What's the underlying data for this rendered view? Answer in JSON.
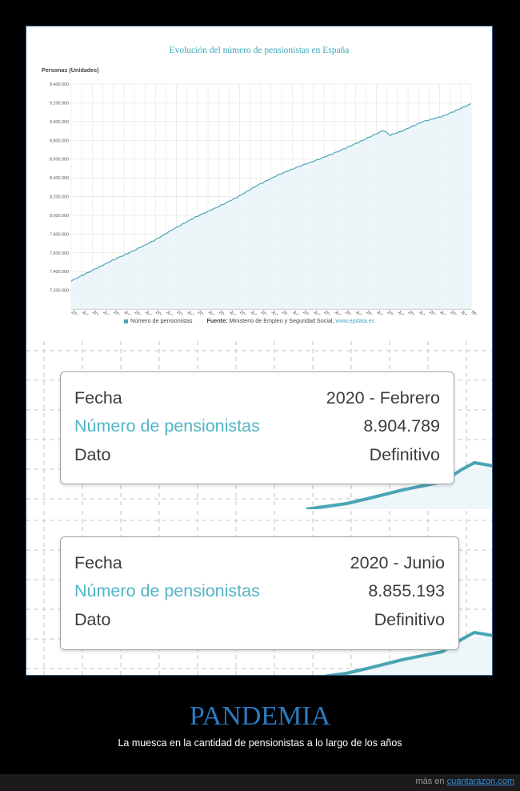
{
  "chart_data": {
    "type": "area",
    "title": "Evolución del número de pensionistas en España",
    "ylabel": "Personas (Unidades)",
    "ylim": [
      7000000,
      9400000
    ],
    "yticks": [
      "9.400.000",
      "9.200.000",
      "9.000.000",
      "8.800.000",
      "8.600.000",
      "8.400.000",
      "8.200.000",
      "8.000.000",
      "7.800.000",
      "7.600.000",
      "7.400.000",
      "7.200.000"
    ],
    "xticks": [
      "2005",
      "Julio",
      "2006",
      "Julio",
      "2007",
      "Julio",
      "2008",
      "Julio",
      "2009",
      "Julio",
      "2010",
      "Julio",
      "2011",
      "Julio",
      "2012",
      "Julio",
      "2013",
      "Julio",
      "2014",
      "Julio",
      "2015",
      "Julio",
      "2016",
      "Julio",
      "2017",
      "Julio",
      "2018",
      "Julio",
      "2019",
      "Julio",
      "2020",
      "Julio",
      "2021",
      "Julio",
      "2022",
      "Julio",
      "2023",
      "Julio",
      "Mayo"
    ],
    "series": [
      {
        "name": "Número de pensionistas",
        "color": "#4aa5b5",
        "x": [
          "2005-01",
          "2006-01",
          "2007-01",
          "2008-01",
          "2009-01",
          "2010-01",
          "2011-01",
          "2012-01",
          "2013-01",
          "2014-01",
          "2015-01",
          "2016-01",
          "2017-01",
          "2018-01",
          "2019-01",
          "2020-02",
          "2020-06",
          "2021-01",
          "2022-01",
          "2023-01",
          "2024-05"
        ],
        "values": [
          7300000,
          7410000,
          7520000,
          7620000,
          7730000,
          7860000,
          7980000,
          8080000,
          8190000,
          8320000,
          8430000,
          8520000,
          8600000,
          8690000,
          8790000,
          8904789,
          8855193,
          8900000,
          9000000,
          9060000,
          9190000
        ]
      }
    ]
  },
  "legend": {
    "series_label": "Número de pensionistas",
    "source_label": "Fuente:",
    "source_text": "Ministerio de Empleo y Seguridad Social,",
    "source_url": "www.epdata.es"
  },
  "tooltips": [
    {
      "fecha_label": "Fecha",
      "fecha_value": "2020 - Febrero",
      "metric_label": "Número de pensionistas",
      "metric_value": "8.904.789",
      "dato_label": "Dato",
      "dato_value": "Definitivo"
    },
    {
      "fecha_label": "Fecha",
      "fecha_value": "2020 - Junio",
      "metric_label": "Número de pensionistas",
      "metric_value": "8.855.193",
      "dato_label": "Dato",
      "dato_value": "Definitivo"
    }
  ],
  "caption": {
    "title": "PANDEMIA",
    "subtitle": "La muesca en la cantidad de pensionistas a lo largo de los años"
  },
  "footer": {
    "prefix": "más en",
    "link": "cuantarazon.com"
  }
}
